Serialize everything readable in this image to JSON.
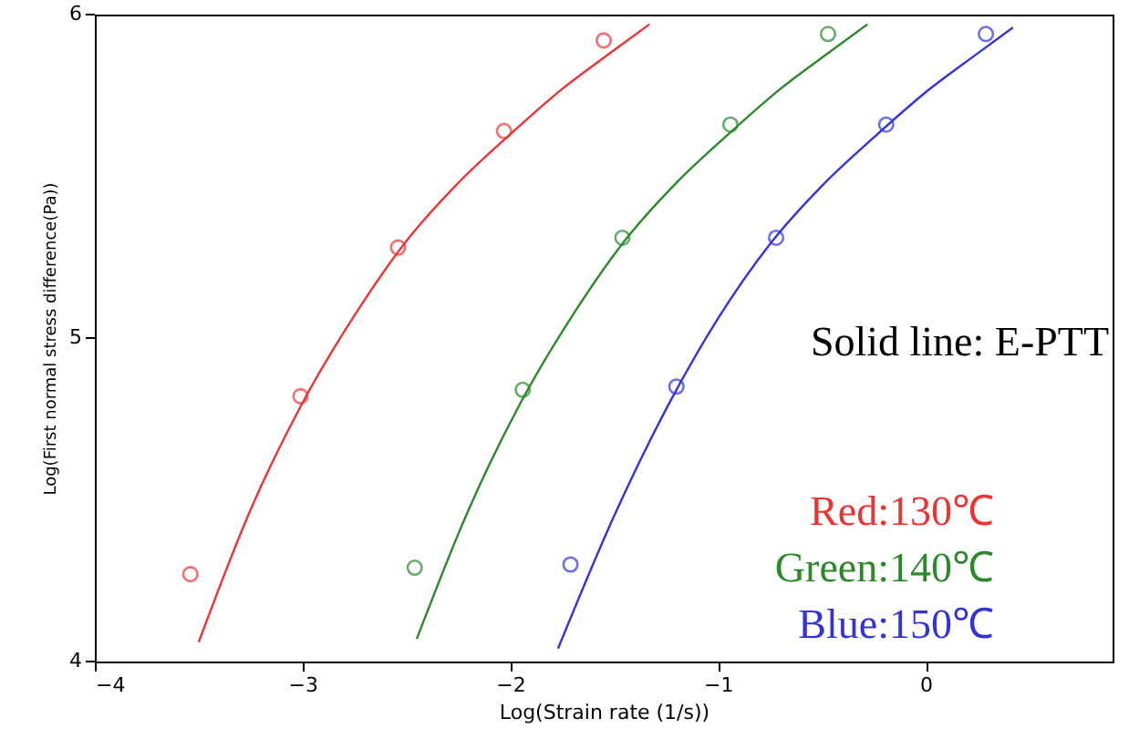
{
  "chart_data": {
    "type": "scatter",
    "xlabel": "Log(Strain rate (1/s))",
    "ylabel": "Log(First normal stress difference(Pa))",
    "xlim": [
      -4,
      0.9
    ],
    "xticks": [
      -4,
      -3,
      -2,
      -1,
      0
    ],
    "ylim": [
      4,
      6
    ],
    "yticks": [
      4,
      5,
      6
    ],
    "grid": false,
    "legend": "bottom right",
    "annotations": [
      "Solid line: E-PTT"
    ],
    "series": [
      {
        "name": "Red:130℃",
        "type": "scatter",
        "marker": "circle",
        "color": "#ee3333",
        "x": [
          -3.54,
          -3.01,
          -2.54,
          -2.03,
          -1.55
        ],
        "values": [
          4.27,
          4.82,
          5.28,
          5.64,
          5.92
        ]
      },
      {
        "name": "Green:140℃",
        "type": "scatter",
        "marker": "circle",
        "color": "#2a8a2a",
        "x": [
          -2.46,
          -1.94,
          -1.46,
          -0.94,
          -0.47
        ],
        "values": [
          4.29,
          4.84,
          5.31,
          5.66,
          5.94
        ]
      },
      {
        "name": "Blue:150℃",
        "type": "scatter",
        "marker": "circle",
        "color": "#3333dd",
        "x": [
          -1.71,
          -1.2,
          -0.72,
          -0.19,
          0.29
        ],
        "values": [
          4.3,
          4.85,
          5.31,
          5.66,
          5.94
        ]
      },
      {
        "type": "line",
        "line_style": "solid",
        "color": "#ee3333",
        "x": [
          -3.5,
          -3.25,
          -3.0,
          -2.75,
          -2.5,
          -2.25,
          -2.0,
          -1.75,
          -1.5,
          -1.33
        ],
        "values": [
          4.06,
          4.47,
          4.8,
          5.07,
          5.3,
          5.48,
          5.63,
          5.77,
          5.89,
          5.97
        ]
      },
      {
        "type": "line",
        "line_style": "solid",
        "color": "#2a8a2a",
        "x": [
          -2.45,
          -2.2,
          -1.95,
          -1.7,
          -1.45,
          -1.2,
          -0.95,
          -0.7,
          -0.45,
          -0.28
        ],
        "values": [
          4.07,
          4.47,
          4.8,
          5.07,
          5.3,
          5.48,
          5.63,
          5.77,
          5.89,
          5.97
        ]
      },
      {
        "type": "line",
        "line_style": "solid",
        "color": "#3333dd",
        "x": [
          -1.77,
          -1.5,
          -1.25,
          -1.0,
          -0.75,
          -0.5,
          -0.25,
          0.0,
          0.25,
          0.42
        ],
        "values": [
          4.04,
          4.45,
          4.78,
          5.06,
          5.29,
          5.47,
          5.62,
          5.76,
          5.88,
          5.96
        ]
      }
    ]
  }
}
